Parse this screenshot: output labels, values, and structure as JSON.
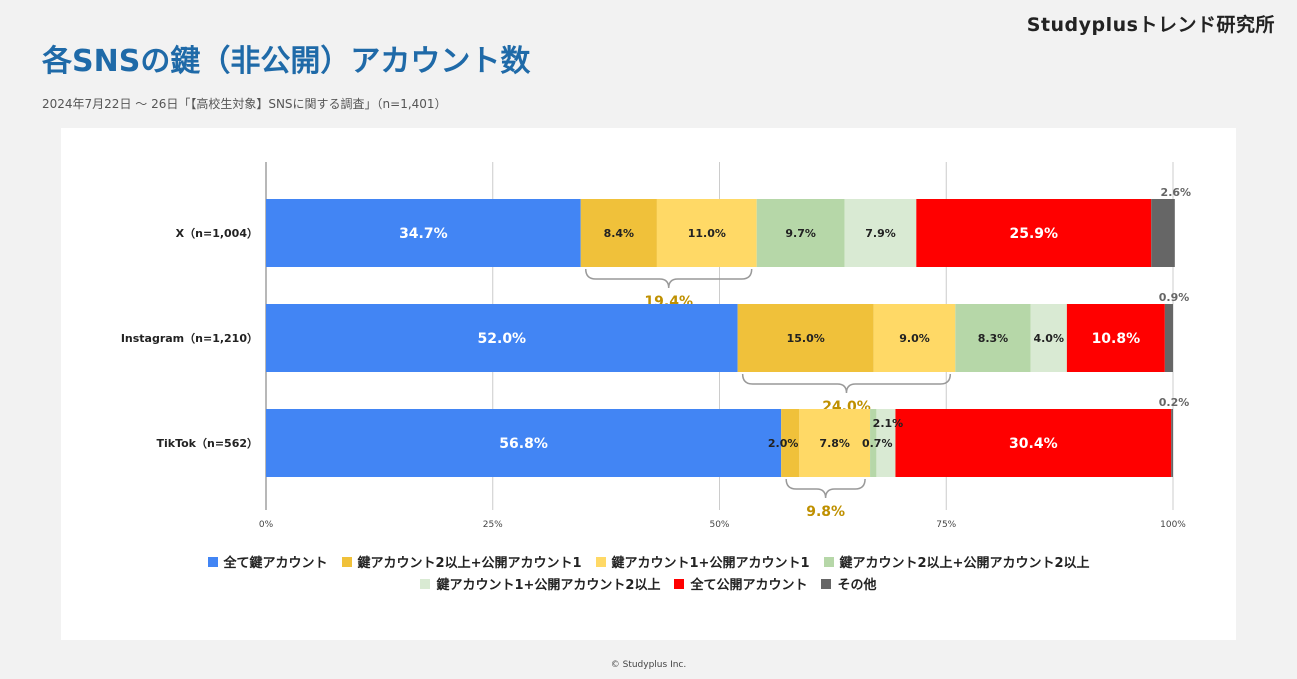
{
  "header": {
    "brand": "Studyplusトレンド研究所",
    "title": "各SNSの鍵（非公開）アカウント数",
    "subtitle": "2024年7月22日 〜 26日「【高校生対象】SNSに関する調査」（n=1,401）"
  },
  "footer": {
    "copyright": "© Studyplus Inc."
  },
  "chart_data": {
    "type": "bar",
    "orientation": "horizontal",
    "stacked": true,
    "normalized": true,
    "categories": [
      "X（n=1,004）",
      "Instagram（n=1,210）",
      "TikTok（n=562）"
    ],
    "xlim": [
      0,
      100
    ],
    "xticks": [
      "0%",
      "25%",
      "50%",
      "75%",
      "100%"
    ],
    "grid": true,
    "legend_position": "bottom",
    "series": [
      {
        "name": "全て鍵アカウント",
        "color": "#4285f4",
        "values": [
          34.7,
          52.0,
          56.8
        ],
        "labels": [
          "34.7%",
          "52.0%",
          "56.8%"
        ]
      },
      {
        "name": "鍵アカウント2以上+公開アカウント1",
        "color": "#f0c13a",
        "values": [
          8.4,
          15.0,
          2.0
        ],
        "labels": [
          "8.4%",
          "15.0%",
          "2.0%"
        ]
      },
      {
        "name": "鍵アカウント1+公開アカウント1",
        "color": "#ffd966",
        "values": [
          11.0,
          9.0,
          7.8
        ],
        "labels": [
          "11.0%",
          "9.0%",
          "7.8%"
        ]
      },
      {
        "name": "鍵アカウント2以上+公開アカウント2以上",
        "color": "#b6d7a8",
        "values": [
          9.7,
          8.3,
          0.7
        ],
        "labels": [
          "9.7%",
          "8.3%",
          "0.7%"
        ]
      },
      {
        "name": "鍵アカウント1+公開アカウント2以上",
        "color": "#d9ead3",
        "values": [
          7.9,
          4.0,
          2.1
        ],
        "labels": [
          "7.9%",
          "4.0%",
          "2.1%"
        ]
      },
      {
        "name": "全て公開アカウント",
        "color": "#ff0000",
        "values": [
          25.9,
          10.8,
          30.4
        ],
        "labels": [
          "25.9%",
          "10.8%",
          "30.4%"
        ]
      },
      {
        "name": "その他",
        "color": "#666666",
        "values": [
          2.6,
          0.9,
          0.2
        ],
        "labels": [
          "2.6%",
          "0.9%",
          "0.2%"
        ]
      }
    ],
    "bracket_annotations": [
      {
        "label": "19.4%",
        "color": "#bf9000"
      },
      {
        "label": "24.0%",
        "color": "#bf9000"
      },
      {
        "label": "9.8%",
        "color": "#bf9000"
      }
    ]
  }
}
